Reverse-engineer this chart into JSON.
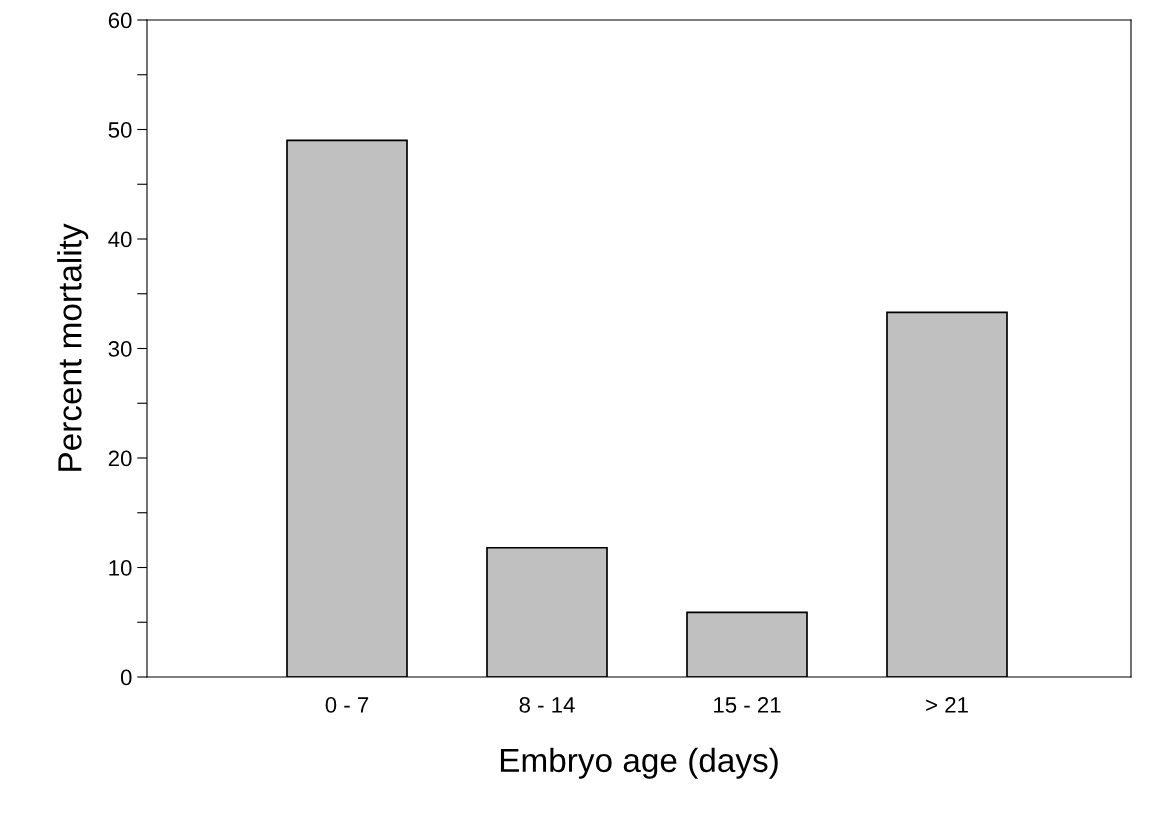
{
  "chart_data": {
    "type": "bar",
    "xlabel": "Embryo age (days)",
    "ylabel": "Percent mortality",
    "categories": [
      "0 - 7",
      "8 - 14",
      "15 - 21",
      "> 21"
    ],
    "values": [
      49,
      11.8,
      5.9,
      33.3
    ],
    "color": "#c0c0c0",
    "ylim": [
      0,
      60
    ],
    "yticks": [
      0,
      {
        "value": 5,
        "label": null
      },
      10,
      {
        "value": 15,
        "label": null
      },
      20,
      {
        "value": 25,
        "label": null
      },
      30,
      {
        "value": 35,
        "label": null
      },
      40,
      {
        "value": 45,
        "label": null
      },
      50,
      {
        "value": 55,
        "label": null
      },
      60
    ],
    "grid": false,
    "legend": false
  }
}
